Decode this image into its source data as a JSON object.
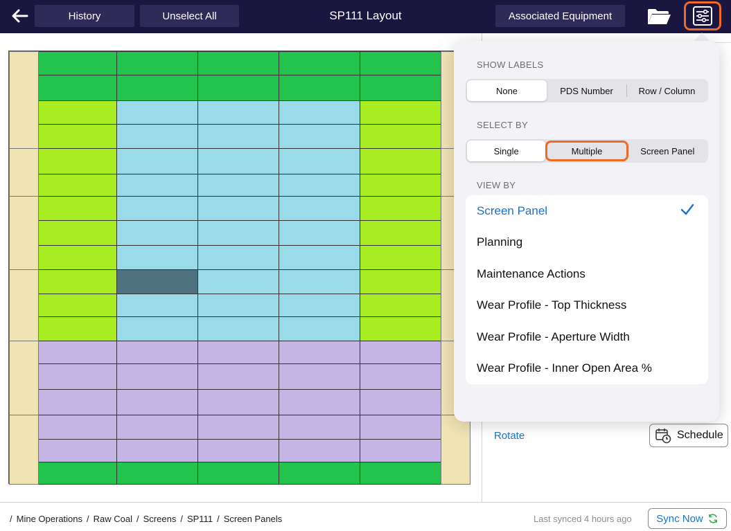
{
  "header": {
    "title": "SP111 Layout",
    "history_label": "History",
    "unselect_all_label": "Unselect All",
    "associated_equipment_label": "Associated Equipment"
  },
  "colors": {
    "header_bg": "#1a1640",
    "accent": "#ee6a26",
    "link": "#1a73c9",
    "green": "#22c44e",
    "lime": "#a8ec22",
    "blue": "#99dbe8",
    "purple": "#c4b5e4",
    "dark": "#4e7280",
    "frame": "#efe4b4"
  },
  "popover": {
    "show_labels": {
      "heading": "SHOW LABELS",
      "options": [
        "None",
        "PDS Number",
        "Row / Column"
      ],
      "selected": "None"
    },
    "select_by": {
      "heading": "SELECT BY",
      "options": [
        "Single",
        "Multiple",
        "Screen Panel"
      ],
      "selected": "Single"
    },
    "view_by": {
      "heading": "VIEW BY",
      "items": [
        "Screen Panel",
        "Planning",
        "Maintenance Actions",
        "Wear Profile - Top Thickness",
        "Wear Profile - Aperture Width",
        "Wear Profile - Inner Open Area %"
      ],
      "selected": "Screen Panel"
    }
  },
  "side_panel": {
    "rotate_label": "Rotate",
    "schedule_label": "Schedule"
  },
  "footer": {
    "breadcrumb": [
      "Mine Operations",
      "Raw Coal",
      "Screens",
      "SP111",
      "Screen Panels"
    ],
    "last_synced": "Last synced 4 hours ago",
    "sync_now_label": "Sync Now"
  },
  "grid_rows": [
    [
      "green",
      "green",
      "green",
      "green",
      "green"
    ],
    [
      "green",
      "green",
      "green",
      "green",
      "green"
    ],
    [
      "lime",
      "blue",
      "blue",
      "blue",
      "lime"
    ],
    [
      "lime",
      "blue",
      "blue",
      "blue",
      "lime"
    ],
    [
      "lime",
      "blue",
      "blue",
      "blue",
      "lime"
    ],
    [
      "lime",
      "blue",
      "blue",
      "blue",
      "lime"
    ],
    [
      "lime",
      "blue",
      "blue",
      "blue",
      "lime"
    ],
    [
      "lime",
      "blue",
      "blue",
      "blue",
      "lime"
    ],
    [
      "lime",
      "blue",
      "blue",
      "blue",
      "lime"
    ],
    [
      "lime",
      "dark",
      "blue",
      "blue",
      "lime"
    ],
    [
      "lime",
      "blue",
      "blue",
      "blue",
      "lime"
    ],
    [
      "lime",
      "blue",
      "blue",
      "blue",
      "lime"
    ],
    [
      "purple",
      "purple",
      "purple",
      "purple",
      "purple"
    ],
    [
      "purple",
      "purple",
      "purple",
      "purple",
      "purple"
    ],
    [
      "purple",
      "purple",
      "purple",
      "purple",
      "purple"
    ],
    [
      "purple",
      "purple",
      "purple",
      "purple",
      "purple"
    ],
    [
      "purple",
      "purple",
      "purple",
      "purple",
      "purple"
    ],
    [
      "green",
      "green",
      "green",
      "green",
      "green"
    ]
  ]
}
